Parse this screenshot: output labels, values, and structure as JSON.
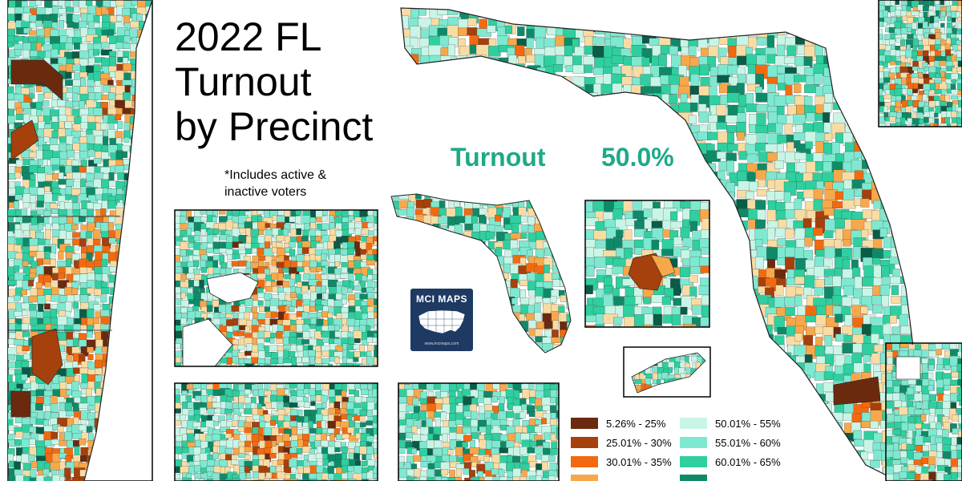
{
  "title_lines": [
    "2022 FL",
    "Turnout",
    "by Precinct"
  ],
  "note_lines": [
    "*Includes active &",
    "inactive voters"
  ],
  "turnout_label": "Turnout",
  "turnout_value": "50.0%",
  "badge": {
    "name": "MCI MAPS",
    "site": "www.mcimaps.com"
  },
  "legend": {
    "items": [
      {
        "label": "5.26% - 25%",
        "color": "#6b2a0e"
      },
      {
        "label": "25.01% - 30%",
        "color": "#a6400c"
      },
      {
        "label": "30.01% - 35%",
        "color": "#f26a10"
      },
      {
        "label": "50.01% - 55%",
        "color": "#c9f5e6"
      },
      {
        "label": "55.01% - 60%",
        "color": "#7fe8d0"
      },
      {
        "label": "60.01% - 65%",
        "color": "#2fcf9f"
      }
    ]
  },
  "palette": {
    "orange_dark": "#6b2a0e",
    "orange_mid": "#a6400c",
    "orange_bright": "#f26a10",
    "orange_light": "#f7a84a",
    "tan": "#f9dca3",
    "teal_pale": "#c9f5e6",
    "teal_light": "#7fe8d0",
    "teal_mid": "#2fcf9f",
    "teal_dark": "#0f8a68",
    "teal_deep": "#0a5c47",
    "accent_text": "#1ea989",
    "badge_navy": "#1e3a63"
  }
}
